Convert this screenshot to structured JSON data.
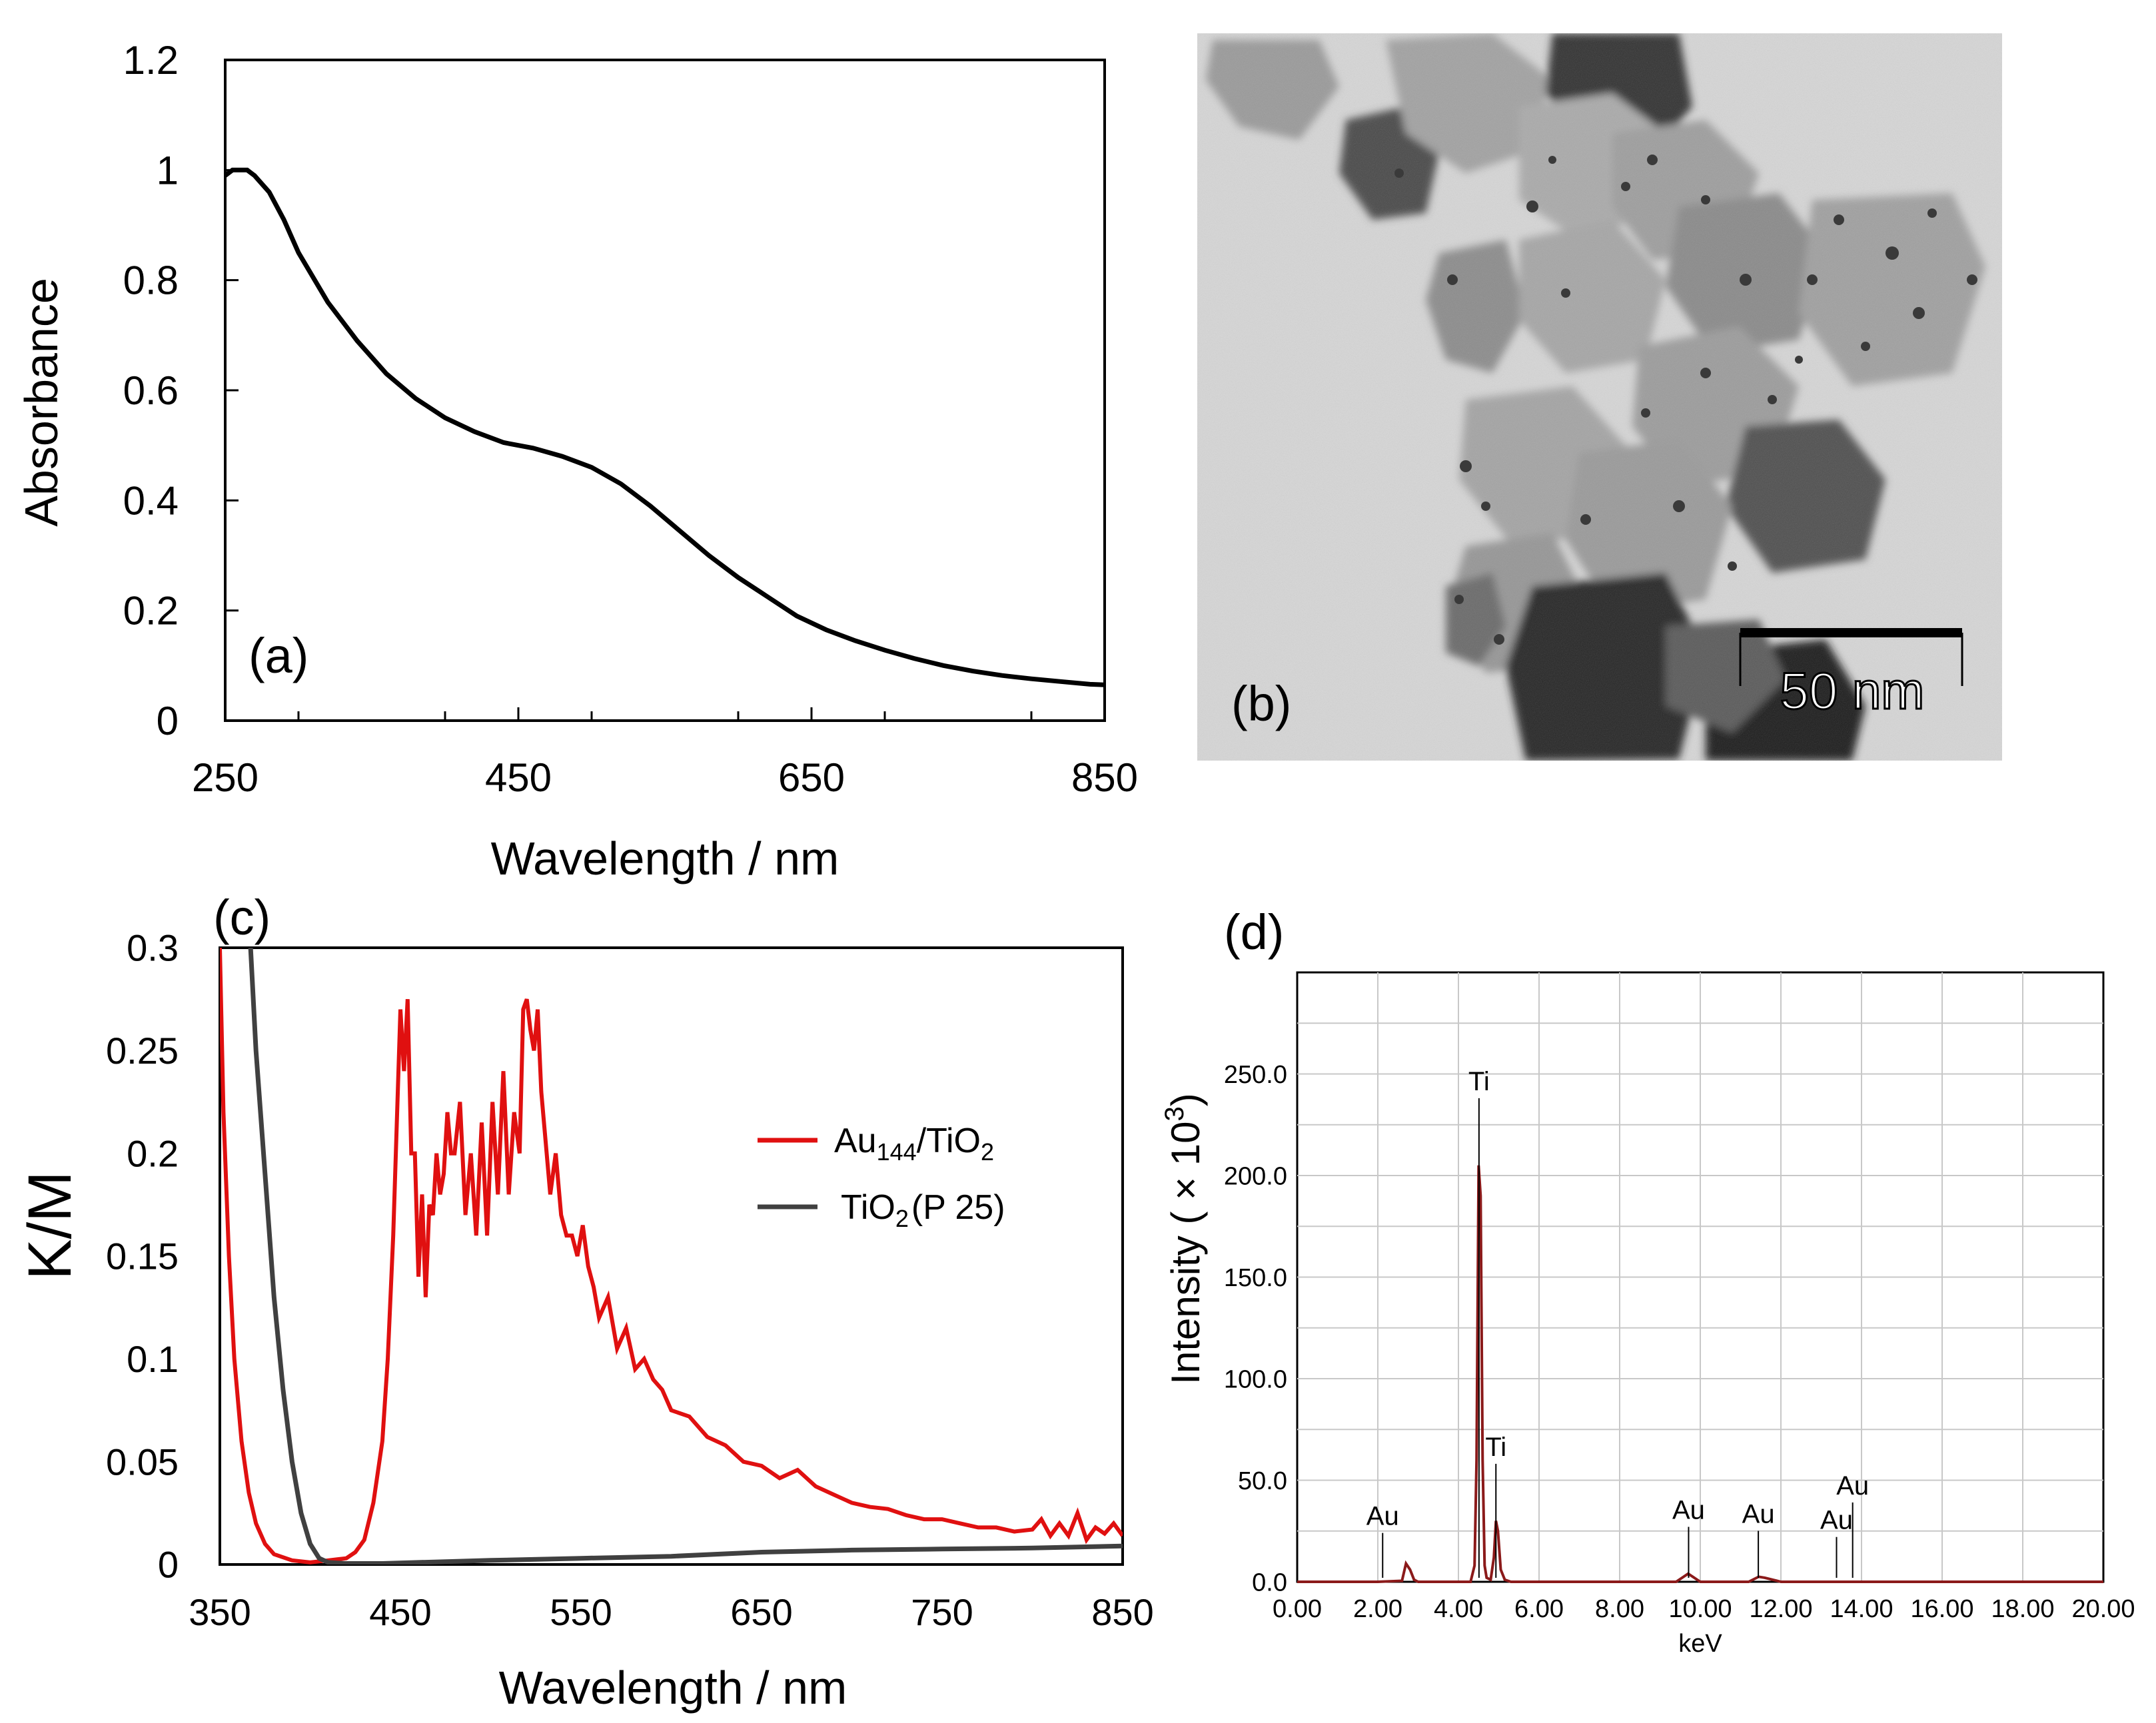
{
  "figure": {
    "panel_a": {
      "label": "(a)"
    },
    "panel_b": {
      "label": "(b)",
      "scale_bar_label": "50 nm",
      "description_kind": "TEM micrograph"
    },
    "panel_c": {
      "label": "(c)"
    },
    "panel_d": {
      "label": "(d)"
    }
  },
  "chart_data": [
    {
      "id": "a",
      "type": "line",
      "title": "",
      "xlabel": "Wavelength / nm",
      "ylabel": "Absorbance",
      "xlim": [
        250,
        850
      ],
      "ylim": [
        0,
        1.2
      ],
      "xticks": [
        250,
        450,
        650,
        850
      ],
      "xtick_labels": [
        "250",
        "450",
        "650",
        "850"
      ],
      "yticks": [
        0,
        0.2,
        0.4,
        0.6,
        0.8,
        1.0,
        1.2
      ],
      "ytick_labels": [
        "0",
        "0.2",
        "0.4",
        "0.6",
        "0.8",
        "1",
        "1.2"
      ],
      "grid": false,
      "series": [
        {
          "name": "absorbance",
          "color": "#000000",
          "x": [
            250,
            255,
            260,
            265,
            270,
            280,
            290,
            300,
            320,
            340,
            360,
            380,
            400,
            420,
            440,
            460,
            480,
            500,
            520,
            540,
            560,
            580,
            600,
            620,
            640,
            660,
            680,
            700,
            720,
            740,
            760,
            780,
            800,
            820,
            840,
            850
          ],
          "y": [
            0.99,
            1.0,
            1.0,
            1.0,
            0.99,
            0.96,
            0.91,
            0.85,
            0.76,
            0.69,
            0.63,
            0.585,
            0.55,
            0.525,
            0.505,
            0.495,
            0.48,
            0.46,
            0.43,
            0.39,
            0.345,
            0.3,
            0.26,
            0.225,
            0.19,
            0.165,
            0.145,
            0.128,
            0.113,
            0.1,
            0.09,
            0.082,
            0.076,
            0.071,
            0.066,
            0.065
          ]
        }
      ]
    },
    {
      "id": "c",
      "type": "line",
      "title": "",
      "xlabel": "Wavelength / nm",
      "ylabel": "K/M",
      "xlim": [
        350,
        850
      ],
      "ylim": [
        0,
        0.3
      ],
      "xticks": [
        350,
        450,
        550,
        650,
        750,
        850
      ],
      "xtick_labels": [
        "350",
        "450",
        "550",
        "650",
        "750",
        "850"
      ],
      "yticks": [
        0,
        0.05,
        0.1,
        0.15,
        0.2,
        0.25,
        0.3
      ],
      "ytick_labels": [
        "0",
        "0.05",
        "0.1",
        "0.15",
        "0.2",
        "0.25",
        "0.3"
      ],
      "grid": false,
      "legend_position": "right-middle",
      "legend": [
        {
          "base": "Au",
          "sub1": "144",
          "mid": "/TiO",
          "sub2": "2",
          "tail": "",
          "color": "#e01010"
        },
        {
          "base": "TiO",
          "sub1": "2",
          "mid": "",
          "sub2": "",
          "tail": "(P 25)",
          "color": "#404040"
        }
      ],
      "series": [
        {
          "name": "Au144/TiO2",
          "color": "#e01010",
          "x": [
            350,
            352,
            355,
            358,
            362,
            366,
            370,
            375,
            380,
            390,
            400,
            410,
            420,
            425,
            430,
            435,
            440,
            443,
            446,
            450,
            452,
            454,
            456,
            458,
            460,
            462,
            464,
            466,
            468,
            470,
            472,
            474,
            476,
            478,
            480,
            483,
            486,
            489,
            492,
            495,
            498,
            501,
            504,
            507,
            510,
            513,
            516,
            518,
            520,
            522,
            524,
            526,
            528,
            530,
            533,
            536,
            539,
            542,
            545,
            548,
            551,
            554,
            557,
            560,
            565,
            570,
            575,
            580,
            585,
            590,
            595,
            600,
            610,
            620,
            630,
            640,
            650,
            660,
            670,
            680,
            690,
            700,
            710,
            720,
            730,
            740,
            750,
            760,
            770,
            780,
            790,
            800,
            805,
            810,
            815,
            820,
            825,
            830,
            835,
            840,
            845,
            850
          ],
          "y": [
            0.3,
            0.22,
            0.15,
            0.1,
            0.06,
            0.035,
            0.02,
            0.01,
            0.005,
            0.002,
            0.001,
            0.002,
            0.003,
            0.006,
            0.012,
            0.03,
            0.06,
            0.1,
            0.16,
            0.27,
            0.24,
            0.275,
            0.2,
            0.2,
            0.14,
            0.18,
            0.13,
            0.175,
            0.17,
            0.2,
            0.18,
            0.19,
            0.22,
            0.2,
            0.2,
            0.225,
            0.17,
            0.2,
            0.16,
            0.215,
            0.16,
            0.225,
            0.18,
            0.24,
            0.18,
            0.22,
            0.2,
            0.27,
            0.275,
            0.26,
            0.25,
            0.27,
            0.23,
            0.21,
            0.18,
            0.2,
            0.17,
            0.16,
            0.16,
            0.15,
            0.165,
            0.145,
            0.135,
            0.12,
            0.13,
            0.105,
            0.115,
            0.095,
            0.1,
            0.09,
            0.085,
            0.075,
            0.072,
            0.062,
            0.058,
            0.05,
            0.048,
            0.042,
            0.046,
            0.038,
            0.034,
            0.03,
            0.028,
            0.027,
            0.024,
            0.022,
            0.022,
            0.02,
            0.018,
            0.018,
            0.016,
            0.017,
            0.022,
            0.014,
            0.02,
            0.014,
            0.025,
            0.012,
            0.018,
            0.015,
            0.02,
            0.014
          ]
        },
        {
          "name": "TiO2 (P 25)",
          "color": "#404040",
          "x": [
            367,
            370,
            375,
            380,
            385,
            390,
            395,
            400,
            405,
            410,
            420,
            440,
            460,
            480,
            500,
            550,
            600,
            650,
            700,
            750,
            800,
            850
          ],
          "y": [
            0.3,
            0.25,
            0.19,
            0.13,
            0.085,
            0.05,
            0.025,
            0.01,
            0.003,
            0.001,
            0.0005,
            0.0005,
            0.001,
            0.0015,
            0.002,
            0.003,
            0.004,
            0.006,
            0.007,
            0.0075,
            0.008,
            0.009
          ]
        }
      ]
    },
    {
      "id": "d",
      "type": "line",
      "title": "",
      "xlabel": "keV",
      "ylabel_base": "Intensity ( × 10",
      "ylabel_exp": "3",
      "ylabel_end": ")",
      "xlim": [
        0,
        20
      ],
      "ylim": [
        0,
        300
      ],
      "xticks": [
        0,
        2,
        4,
        6,
        8,
        10,
        12,
        14,
        16,
        18,
        20
      ],
      "xtick_labels": [
        "0.00",
        "2.00",
        "4.00",
        "6.00",
        "8.00",
        "10.00",
        "12.00",
        "14.00",
        "16.00",
        "18.00",
        "20.00"
      ],
      "yticks": [
        0,
        50,
        100,
        150,
        200,
        250
      ],
      "ytick_labels": [
        "0.0",
        "50.0",
        "100.0",
        "150.0",
        "200.0",
        "250.0"
      ],
      "grid": true,
      "series": [
        {
          "name": "EDS spectrum",
          "color": "#8b1a1a",
          "x": [
            0,
            2.0,
            2.6,
            2.7,
            2.8,
            2.9,
            3.0,
            4.3,
            4.4,
            4.45,
            4.5,
            4.55,
            4.6,
            4.65,
            4.7,
            4.8,
            4.88,
            4.93,
            4.98,
            5.05,
            5.15,
            5.3,
            9.4,
            9.55,
            9.7,
            9.85,
            10.0,
            11.2,
            11.45,
            11.6,
            11.8,
            12.0,
            20.0
          ],
          "y": [
            0,
            0,
            0.5,
            9,
            6,
            1,
            0,
            0,
            8,
            60,
            205,
            190,
            60,
            8,
            2,
            1,
            12,
            30,
            25,
            6,
            1,
            0,
            0,
            2,
            4,
            2,
            0,
            0,
            2.5,
            2,
            1,
            0,
            0
          ]
        }
      ],
      "peak_labels": [
        {
          "text": "Au",
          "x": 2.12,
          "y": 28
        },
        {
          "text": "Ti",
          "x": 4.51,
          "y": 242
        },
        {
          "text": "Ti",
          "x": 4.93,
          "y": 62
        },
        {
          "text": "Au",
          "x": 9.71,
          "y": 31
        },
        {
          "text": "Au",
          "x": 11.44,
          "y": 29
        },
        {
          "text": "Au",
          "x": 13.38,
          "y": 26
        },
        {
          "text": "Au",
          "x": 13.78,
          "y": 43
        }
      ]
    }
  ]
}
